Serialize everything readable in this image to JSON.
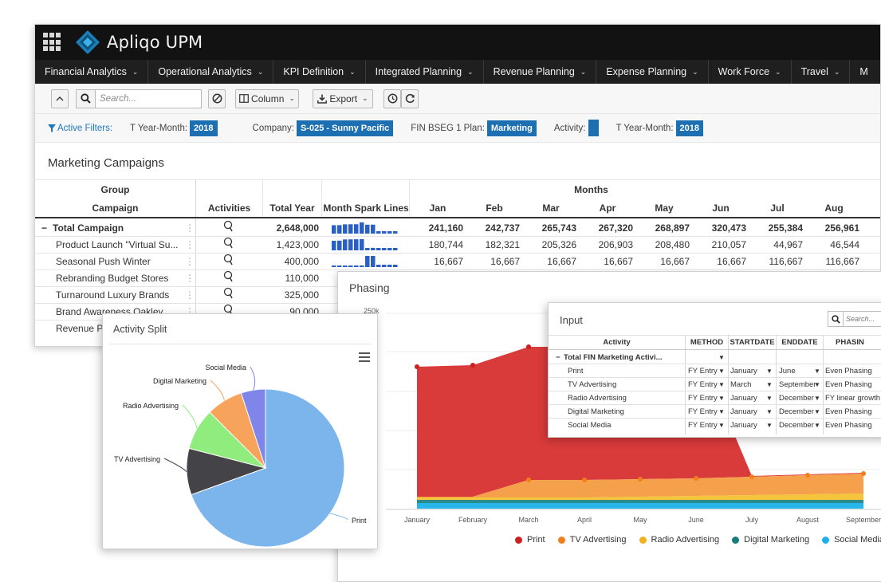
{
  "app": {
    "title": "Apliqo UPM"
  },
  "menu": [
    {
      "label": "Financial Analytics"
    },
    {
      "label": "Operational Analytics"
    },
    {
      "label": "KPI Definition"
    },
    {
      "label": "Integrated Planning"
    },
    {
      "label": "Revenue Planning"
    },
    {
      "label": "Expense Planning"
    },
    {
      "label": "Work Force"
    },
    {
      "label": "Travel"
    },
    {
      "label": "M"
    }
  ],
  "toolbar": {
    "search_placeholder": "Search...",
    "column_label": "Column",
    "export_label": "Export"
  },
  "filters": {
    "active_label": "Active Filters:",
    "items": [
      {
        "label": "T Year-Month:",
        "value": "2018"
      },
      {
        "label": "Company:",
        "value": "S-025 - Sunny Pacific"
      },
      {
        "label": "FIN BSEG 1 Plan:",
        "value": "Marketing"
      },
      {
        "label": "Activity:",
        "value": ""
      },
      {
        "label": "T Year-Month:",
        "value": "2018"
      }
    ]
  },
  "panel": {
    "title": "Marketing Campaigns"
  },
  "grid": {
    "group_header": "Group",
    "campaign_header": "Campaign",
    "activities_header": "Activities",
    "total_year_header": "Total Year",
    "spark_header": "Month Spark Lines",
    "months_header": "Months",
    "months": [
      "Jan",
      "Feb",
      "Mar",
      "Apr",
      "May",
      "Jun",
      "Jul",
      "Aug"
    ],
    "total_row": {
      "name": "Total Campaign",
      "total": "2,648,000",
      "months": [
        "241,160",
        "242,737",
        "265,743",
        "267,320",
        "268,897",
        "320,473",
        "255,384",
        "256,961"
      ]
    },
    "rows": [
      {
        "name": "Product Launch \"Virtual Su...",
        "total": "1,423,000",
        "months": [
          "180,744",
          "182,321",
          "205,326",
          "206,903",
          "208,480",
          "210,057",
          "44,967",
          "46,544"
        ]
      },
      {
        "name": "Seasonal Push Winter",
        "total": "400,000",
        "months": [
          "16,667",
          "16,667",
          "16,667",
          "16,667",
          "16,667",
          "16,667",
          "116,667",
          "116,667"
        ]
      },
      {
        "name": "Rebranding Budget Stores",
        "total": "110,000"
      },
      {
        "name": "Turnaround Luxury Brands",
        "total": "325,000"
      },
      {
        "name": "Brand Awareness Oakley",
        "total": "90,000"
      },
      {
        "name": "Revenue Pu",
        "total": ""
      }
    ]
  },
  "phasing": {
    "title": "Phasing",
    "y_tick_visible": "250k",
    "x_labels": [
      "January",
      "February",
      "March",
      "April",
      "May",
      "June",
      "July",
      "August",
      "September"
    ],
    "legend": [
      {
        "name": "Print",
        "color": "#cc1f1f"
      },
      {
        "name": "TV Advertising",
        "color": "#f07f1c"
      },
      {
        "name": "Radio Advertising",
        "color": "#f0b21c"
      },
      {
        "name": "Digital Marketing",
        "color": "#1a7b7b"
      },
      {
        "name": "Social Media",
        "color": "#1eb0e8"
      }
    ]
  },
  "activity_split": {
    "title": "Activity Split",
    "labels": [
      "Social Media",
      "Digital Marketing",
      "Radio Advertising",
      "TV Advertising",
      "Print"
    ]
  },
  "chart_data": {
    "type": "pie",
    "title": "Activity Split",
    "categories": [
      "Print",
      "TV Advertising",
      "Radio Advertising",
      "Digital Marketing",
      "Social Media"
    ],
    "values": [
      69.5,
      9.5,
      8.5,
      7.5,
      5.0
    ],
    "colors": [
      "#7cb5ec",
      "#434348",
      "#90ed7d",
      "#f7a35c",
      "#8085e9"
    ]
  },
  "input": {
    "title": "Input",
    "search_placeholder": "Search...",
    "headers": [
      "Activity",
      "METHOD",
      "STARTDATE",
      "ENDDATE",
      "PHASIN"
    ],
    "total_label": "Total FIN Marketing Activi...",
    "rows": [
      {
        "activity": "Print",
        "method": "FY Entry",
        "start": "January",
        "end": "June",
        "phasing": "Even Phasing"
      },
      {
        "activity": "TV Advertising",
        "method": "FY Entry",
        "start": "March",
        "end": "September",
        "phasing": "Even Phasing"
      },
      {
        "activity": "Radio Advertising",
        "method": "FY Entry",
        "start": "January",
        "end": "December",
        "phasing": "FY linear growth t"
      },
      {
        "activity": "Digital Marketing",
        "method": "FY Entry",
        "start": "January",
        "end": "December",
        "phasing": "Even Phasing"
      },
      {
        "activity": "Social Media",
        "method": "FY Entry",
        "start": "January",
        "end": "December",
        "phasing": "Even Phasing"
      }
    ]
  }
}
